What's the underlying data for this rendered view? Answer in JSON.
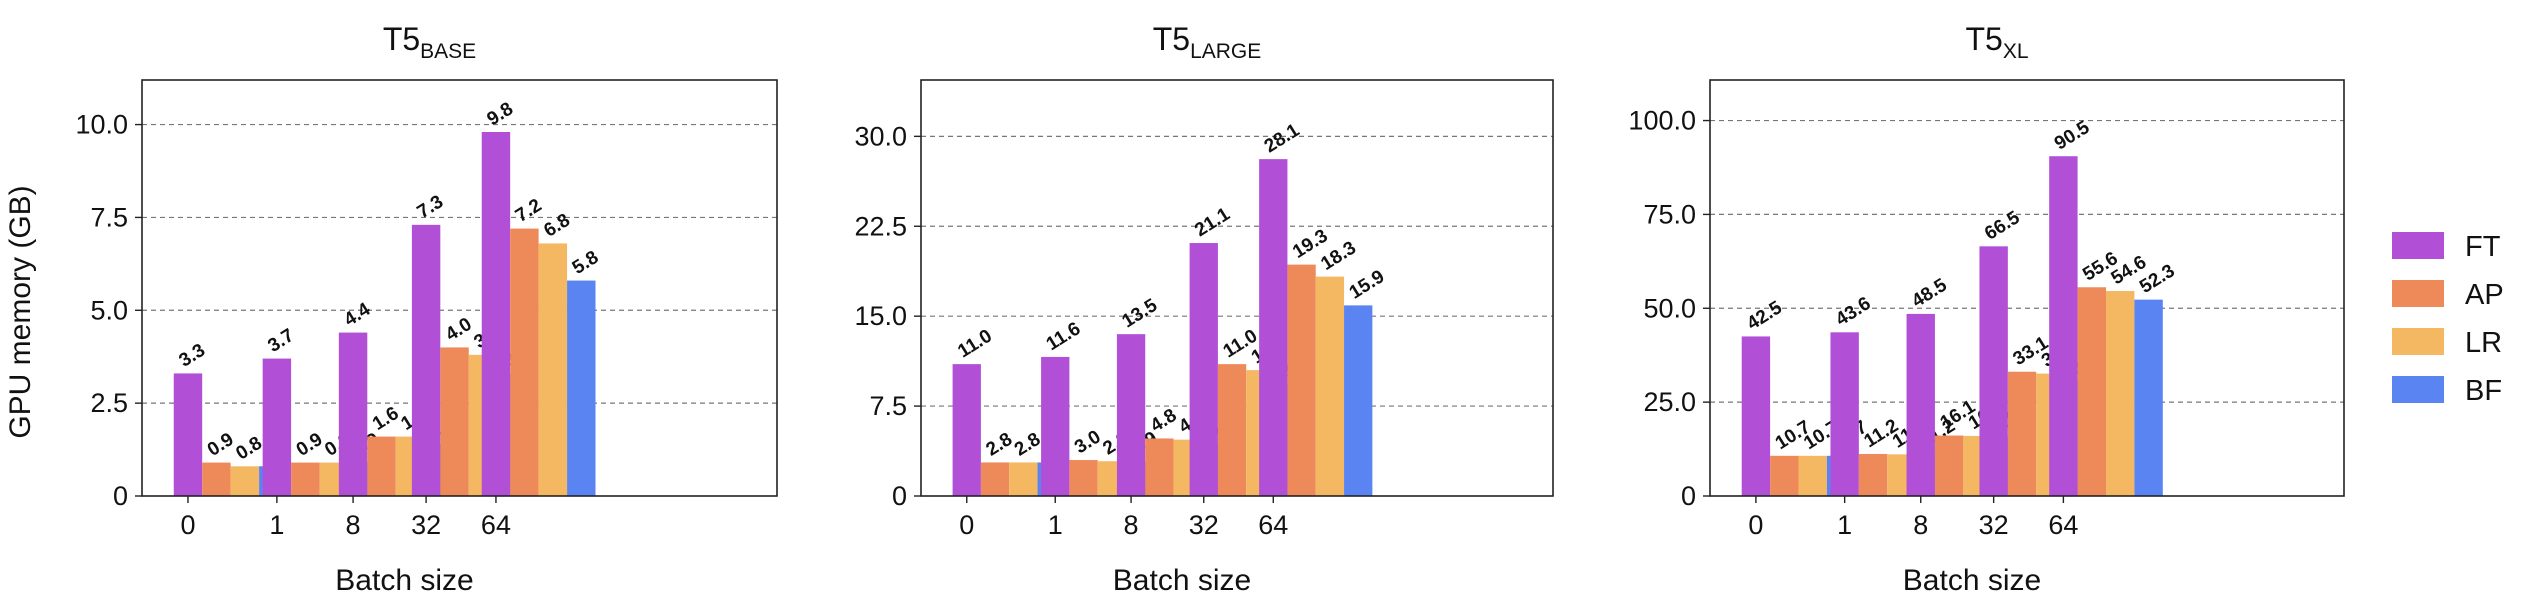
{
  "ylabel": "GPU memory (GB)",
  "legend": {
    "position": "right",
    "items": [
      {
        "label": "FT",
        "color": "#b150d6"
      },
      {
        "label": "AP",
        "color": "#ee8a5a"
      },
      {
        "label": "LR",
        "color": "#f5b862"
      },
      {
        "label": "BF",
        "color": "#5a84f2"
      }
    ]
  },
  "chart_data": [
    {
      "type": "bar",
      "title": "T5",
      "title_subscript": "BASE",
      "xlabel": "Batch size",
      "ylabel": "GPU memory (GB)",
      "categories": [
        "0",
        "1",
        "8",
        "32",
        "64"
      ],
      "ylim": [
        0,
        11.2
      ],
      "yticks": [
        0,
        2.5,
        5.0,
        7.5,
        10.0
      ],
      "ytick_labels": [
        "0",
        "2.5",
        "5.0",
        "7.5",
        "10.0"
      ],
      "grid": "horizontal dashed",
      "series": [
        {
          "name": "FT",
          "color": "#b150d6",
          "values": [
            3.3,
            3.7,
            4.4,
            7.3,
            9.8
          ]
        },
        {
          "name": "AP",
          "color": "#ee8a5a",
          "values": [
            0.9,
            0.9,
            1.6,
            4.0,
            7.2
          ]
        },
        {
          "name": "LR",
          "color": "#f5b862",
          "values": [
            0.8,
            0.9,
            1.6,
            3.8,
            6.8
          ]
        },
        {
          "name": "BF",
          "color": "#5a84f2",
          "values": [
            0.8,
            0.9,
            1.4,
            3.3,
            5.8
          ]
        }
      ]
    },
    {
      "type": "bar",
      "title": "T5",
      "title_subscript": "LARGE",
      "xlabel": "Batch size",
      "ylabel": "",
      "categories": [
        "0",
        "1",
        "8",
        "32",
        "64"
      ],
      "ylim": [
        0,
        34.7
      ],
      "yticks": [
        0,
        7.5,
        15.0,
        22.5,
        30.0
      ],
      "ytick_labels": [
        "0",
        "7.5",
        "15.0",
        "22.5",
        "30.0"
      ],
      "grid": "horizontal dashed",
      "series": [
        {
          "name": "FT",
          "color": "#b150d6",
          "values": [
            11.0,
            11.6,
            13.5,
            21.1,
            28.1
          ]
        },
        {
          "name": "AP",
          "color": "#ee8a5a",
          "values": [
            2.8,
            3.0,
            4.8,
            11.0,
            19.3
          ]
        },
        {
          "name": "LR",
          "color": "#f5b862",
          "values": [
            2.8,
            2.9,
            4.7,
            10.5,
            18.3
          ]
        },
        {
          "name": "BF",
          "color": "#5a84f2",
          "values": [
            2.8,
            2.9,
            4.4,
            9.3,
            15.9
          ]
        }
      ]
    },
    {
      "type": "bar",
      "title": "T5",
      "title_subscript": "XL",
      "xlabel": "Batch size",
      "ylabel": "",
      "categories": [
        "0",
        "1",
        "8",
        "32",
        "64"
      ],
      "ylim": [
        0,
        110.8
      ],
      "yticks": [
        0,
        25.0,
        50.0,
        75.0,
        100.0
      ],
      "ytick_labels": [
        "0",
        "25.0",
        "50.0",
        "75.0",
        "100.0"
      ],
      "grid": "horizontal dashed",
      "series": [
        {
          "name": "FT",
          "color": "#b150d6",
          "values": [
            42.5,
            43.6,
            48.5,
            66.5,
            90.5
          ]
        },
        {
          "name": "AP",
          "color": "#ee8a5a",
          "values": [
            10.7,
            11.2,
            16.1,
            33.1,
            55.6
          ]
        },
        {
          "name": "LR",
          "color": "#f5b862",
          "values": [
            10.7,
            11.1,
            16.0,
            32.6,
            54.6
          ]
        },
        {
          "name": "BF",
          "color": "#5a84f2",
          "values": [
            10.7,
            11.2,
            15.8,
            30.5,
            52.3
          ]
        }
      ]
    }
  ]
}
